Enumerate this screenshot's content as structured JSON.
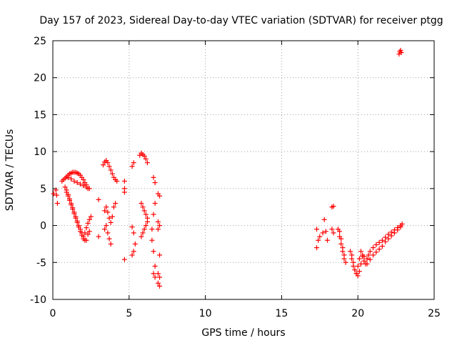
{
  "chart_data": {
    "type": "scatter",
    "title": "Day 157 of 2023, Sidereal Day-to-day VTEC variation (SDTVAR) for receiver ptgg",
    "xlabel": "GPS time / hours",
    "ylabel": "SDTVAR / TECUs",
    "xlim": [
      0,
      25
    ],
    "ylim": [
      -10,
      25
    ],
    "xticks": [
      0,
      5,
      10,
      15,
      20,
      25
    ],
    "yticks": [
      -10,
      -5,
      0,
      5,
      10,
      15,
      20,
      25
    ],
    "grid": true,
    "marker": "+",
    "color": "#ff0000",
    "series": [
      {
        "name": "SDTVAR",
        "x": [
          0.05,
          0.2,
          0.25,
          0.3,
          0.6,
          0.7,
          0.8,
          0.9,
          1.0,
          1.1,
          1.2,
          1.3,
          1.4,
          1.5,
          1.6,
          1.7,
          1.8,
          1.9,
          2.0,
          2.1,
          2.2,
          2.3,
          0.8,
          0.9,
          1.0,
          1.1,
          1.2,
          1.3,
          1.4,
          1.5,
          1.6,
          1.7,
          1.8,
          1.9,
          2.0,
          2.1,
          2.2,
          2.3,
          2.4,
          0.9,
          1.0,
          1.1,
          1.2,
          1.3,
          1.4,
          1.5,
          1.6,
          1.7,
          1.8,
          1.9,
          2.0,
          2.1,
          2.2,
          2.3,
          2.4,
          2.5,
          1.0,
          1.2,
          1.4,
          1.6,
          1.8,
          2.0,
          2.2,
          2.4,
          3.0,
          3.0,
          3.3,
          3.4,
          3.5,
          3.6,
          3.7,
          3.8,
          3.9,
          4.0,
          4.1,
          4.2,
          3.4,
          3.5,
          3.6,
          3.7,
          3.8,
          3.9,
          4.0,
          4.1,
          3.4,
          3.5,
          3.6,
          3.7,
          3.8,
          4.7,
          4.7,
          4.7,
          4.7,
          5.2,
          5.3,
          5.2,
          5.3,
          5.4,
          5.3,
          5.2,
          5.7,
          5.8,
          5.9,
          6.0,
          6.1,
          6.2,
          5.8,
          5.9,
          6.0,
          6.1,
          6.2,
          6.2,
          6.1,
          6.0,
          5.9,
          5.8,
          6.6,
          6.7,
          6.7,
          6.6,
          6.5,
          6.5,
          6.6,
          6.7,
          6.6,
          6.7,
          6.9,
          7.0,
          6.9,
          7.0,
          6.9,
          7.0,
          6.9,
          7.0,
          6.9,
          7.0,
          17.3,
          17.3,
          17.4,
          17.5,
          17.7,
          17.8,
          17.9,
          18.0,
          18.3,
          18.4,
          18.3,
          18.4,
          18.7,
          18.8,
          18.9,
          19.0,
          19.1,
          18.8,
          18.9,
          19.0,
          19.1,
          19.2,
          19.5,
          19.6,
          19.7,
          19.8,
          19.9,
          20.0,
          20.1,
          20.2,
          20.3,
          20.4,
          19.6,
          19.7,
          19.8,
          19.9,
          20.0,
          20.1,
          20.2,
          20.3,
          20.4,
          20.5,
          20.6,
          20.7,
          20.8,
          21.0,
          21.2,
          21.4,
          21.6,
          21.8,
          22.0,
          22.2,
          22.4,
          22.6,
          22.8,
          22.9,
          20.6,
          20.8,
          21.0,
          21.2,
          21.4,
          21.6,
          21.8,
          22.0,
          22.2,
          22.4,
          22.6,
          22.8,
          22.7,
          22.75,
          22.8,
          22.85
        ],
        "y": [
          4.3,
          4.8,
          4.1,
          3.0,
          6.0,
          6.2,
          6.4,
          6.6,
          6.8,
          7.0,
          7.1,
          7.2,
          7.2,
          7.2,
          7.1,
          7.0,
          6.8,
          6.5,
          6.2,
          5.8,
          5.5,
          5.0,
          5.2,
          4.8,
          4.2,
          3.6,
          3.0,
          2.4,
          1.8,
          1.2,
          0.6,
          0.0,
          -0.5,
          -1.0,
          -1.5,
          -2.0,
          -2.0,
          -1.2,
          -0.8,
          4.5,
          4.0,
          3.4,
          2.8,
          2.2,
          1.6,
          1.0,
          0.4,
          -0.2,
          -0.8,
          -1.3,
          -1.8,
          -1.0,
          -0.3,
          0.3,
          0.8,
          1.2,
          6.5,
          6.3,
          6.0,
          5.8,
          5.6,
          5.4,
          5.2,
          5.0,
          3.5,
          -1.5,
          8.2,
          8.6,
          8.8,
          8.5,
          8.0,
          7.5,
          7.0,
          6.5,
          6.2,
          6.0,
          2.0,
          2.5,
          1.8,
          1.0,
          0.4,
          1.2,
          2.5,
          3.0,
          -0.5,
          0.0,
          -1.0,
          -1.8,
          -2.5,
          6.0,
          5.0,
          4.5,
          -4.6,
          8.0,
          8.5,
          -0.2,
          -1.0,
          -2.5,
          -3.5,
          -4.0,
          9.5,
          9.8,
          9.6,
          9.4,
          9.0,
          8.5,
          3.0,
          2.5,
          2.0,
          1.5,
          1.0,
          0.5,
          0.0,
          -0.5,
          -1.0,
          -1.5,
          6.5,
          5.8,
          3.0,
          1.5,
          -0.5,
          -2.0,
          -3.5,
          -5.5,
          -6.5,
          -7.0,
          4.3,
          4.0,
          0.5,
          0.0,
          -0.5,
          -4.0,
          -6.5,
          -7.0,
          -7.8,
          -8.2,
          -0.5,
          -3.0,
          -2.0,
          -1.5,
          -1.0,
          0.8,
          -0.8,
          -2.0,
          2.5,
          2.6,
          -0.5,
          -1.0,
          -0.5,
          -1.5,
          -2.5,
          -3.5,
          -4.5,
          -0.8,
          -1.8,
          -3.0,
          -4.0,
          -5.0,
          -3.5,
          -4.5,
          -5.5,
          -6.0,
          -6.5,
          -5.5,
          -4.5,
          -3.5,
          -4.0,
          -4.2,
          -4.0,
          -5.0,
          -6.0,
          -6.5,
          -6.8,
          -6.2,
          -5.2,
          -4.2,
          -4.8,
          -5.2,
          -4.5,
          -4.0,
          -3.5,
          -3.0,
          -2.6,
          -2.3,
          -2.0,
          -1.6,
          -1.2,
          -0.9,
          -0.6,
          -0.3,
          0.0,
          0.2,
          -5.2,
          -4.6,
          -4.0,
          -3.6,
          -3.2,
          -2.8,
          -2.2,
          -1.8,
          -1.4,
          -1.0,
          -0.6,
          -0.2,
          23.2,
          23.5,
          23.7,
          23.4
        ]
      }
    ]
  }
}
